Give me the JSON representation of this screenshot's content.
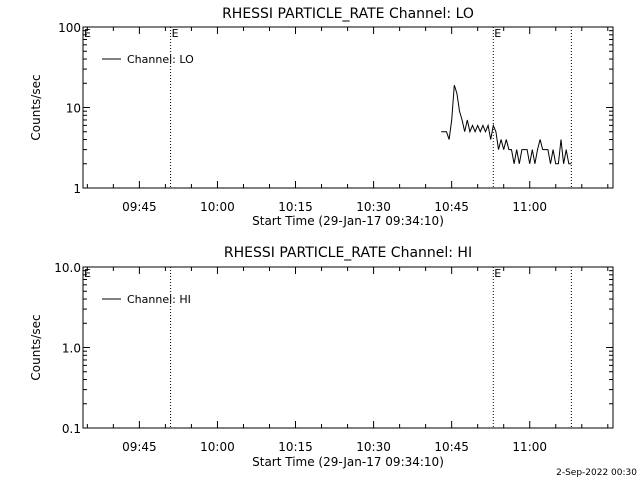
{
  "footer": {
    "timestamp": "2-Sep-2022 00:30"
  },
  "chart_data": [
    {
      "type": "line",
      "title": "RHESSI PARTICLE_RATE Channel: LO",
      "xlabel": "Start Time (29-Jan-17 09:34:10)",
      "ylabel": "Counts/sec",
      "y_scale": "log",
      "ylim": [
        1,
        100
      ],
      "y_ticks": [
        1,
        10,
        100
      ],
      "y_tick_labels": [
        "1",
        "10",
        "100"
      ],
      "xlim": [
        "09:34:10",
        "11:16:00"
      ],
      "x_ticks": [
        "09:45",
        "10:00",
        "10:15",
        "10:30",
        "10:45",
        "11:00"
      ],
      "markers": [
        {
          "time": "09:51:00",
          "label": "E"
        },
        {
          "time": "10:53:00",
          "label": "E"
        },
        {
          "time": "11:08:00",
          "label": ""
        }
      ],
      "edge_marker_label": "E",
      "legend": {
        "placement": "top-left",
        "entries": [
          "Channel: LO"
        ]
      },
      "series": [
        {
          "name": "Channel: LO",
          "x": [
            "10:43:00",
            "10:44:00",
            "10:44:30",
            "10:45:00",
            "10:45:30",
            "10:46:00",
            "10:46:30",
            "10:47:00",
            "10:47:30",
            "10:48:00",
            "10:48:30",
            "10:49:00",
            "10:49:30",
            "10:50:00",
            "10:50:30",
            "10:51:00",
            "10:51:30",
            "10:52:00",
            "10:52:30",
            "10:53:00",
            "10:53:30",
            "10:54:00",
            "10:54:30",
            "10:55:00",
            "10:55:30",
            "10:56:00",
            "10:56:30",
            "10:57:00",
            "10:57:30",
            "10:58:00",
            "10:58:30",
            "10:59:00",
            "10:59:30",
            "11:00:00",
            "11:00:30",
            "11:01:00",
            "11:01:30",
            "11:02:00",
            "11:02:30",
            "11:03:00",
            "11:03:30",
            "11:04:00",
            "11:04:30",
            "11:05:00",
            "11:05:30",
            "11:06:00",
            "11:06:30",
            "11:07:00",
            "11:07:30",
            "11:08:00"
          ],
          "values": [
            5,
            5,
            4,
            7,
            19,
            15,
            9,
            7,
            5,
            7,
            5,
            6,
            5,
            6,
            5,
            6,
            5,
            6,
            4,
            6,
            5,
            3,
            4,
            3,
            4,
            3,
            3,
            2,
            3,
            2,
            3,
            3,
            3,
            2,
            3,
            2,
            3,
            4,
            3,
            3,
            3,
            2,
            3,
            2,
            2,
            4,
            2,
            3,
            2,
            2
          ]
        }
      ]
    },
    {
      "type": "line",
      "title": "RHESSI PARTICLE_RATE Channel: HI",
      "xlabel": "Start Time (29-Jan-17 09:34:10)",
      "ylabel": "Counts/sec",
      "y_scale": "log",
      "ylim": [
        0.1,
        10
      ],
      "y_ticks": [
        0.1,
        1,
        10
      ],
      "y_tick_labels": [
        "0.1",
        "1.0",
        "10.0"
      ],
      "xlim": [
        "09:34:10",
        "11:16:00"
      ],
      "x_ticks": [
        "09:45",
        "10:00",
        "10:15",
        "10:30",
        "10:45",
        "11:00"
      ],
      "markers": [
        {
          "time": "09:51:00",
          "label": ""
        },
        {
          "time": "10:53:00",
          "label": "E"
        },
        {
          "time": "11:08:00",
          "label": ""
        }
      ],
      "edge_marker_label": "E",
      "legend": {
        "placement": "top-left",
        "entries": [
          "Channel: HI"
        ]
      },
      "series": [
        {
          "name": "Channel: HI",
          "x": [],
          "values": []
        }
      ]
    }
  ]
}
